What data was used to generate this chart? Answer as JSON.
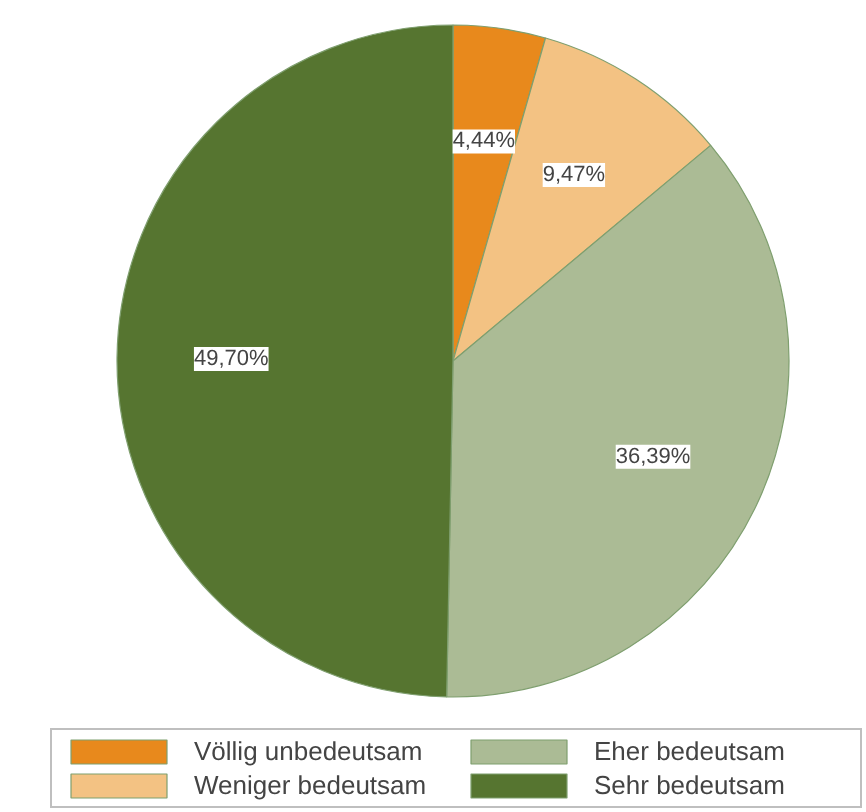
{
  "chart_data": {
    "type": "pie",
    "categories": [
      "Völlig unbedeutsam",
      "Weniger bedeutsam",
      "Eher bedeutsam",
      "Sehr bedeutsam"
    ],
    "values": [
      4.44,
      9.47,
      36.39,
      49.7
    ],
    "colors": [
      "#e8891c",
      "#f3c283",
      "#abbb95",
      "#567530"
    ],
    "value_labels": [
      "4,44%",
      "9,47%",
      "36,39%",
      "49,70%"
    ],
    "legend": "bottom"
  }
}
